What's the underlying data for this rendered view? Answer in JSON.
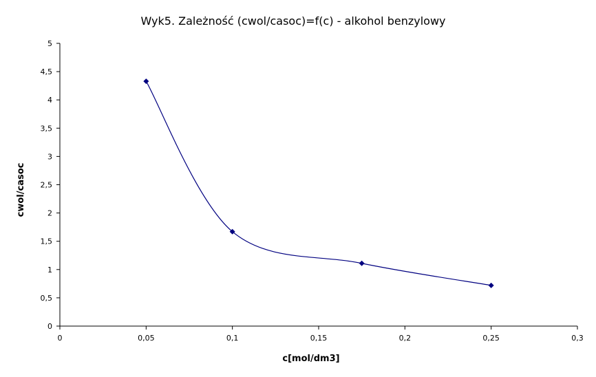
{
  "chart_data": {
    "type": "scatter",
    "title": "Wyk5. Zależność (cwol/casoc)=f(c) - alkohol benzylowy",
    "xlabel": "c[mol/dm3]",
    "ylabel": "cwol/casoc",
    "xlim": [
      0,
      0.3
    ],
    "ylim": [
      0,
      5
    ],
    "x_ticks": [
      "0",
      "0,05",
      "0,1",
      "0,15",
      "0,2",
      "0,25",
      "0,3"
    ],
    "y_ticks": [
      "0",
      "0,5",
      "1",
      "1,5",
      "2",
      "2,5",
      "3",
      "3,5",
      "4",
      "4,5",
      "5"
    ],
    "grid": false,
    "legend": "none",
    "series": [
      {
        "color": "#000080",
        "marker": "diamond",
        "smooth": true,
        "x": [
          0.05,
          0.1,
          0.175,
          0.25
        ],
        "y": [
          4.33,
          1.67,
          1.11,
          0.72
        ]
      }
    ]
  }
}
